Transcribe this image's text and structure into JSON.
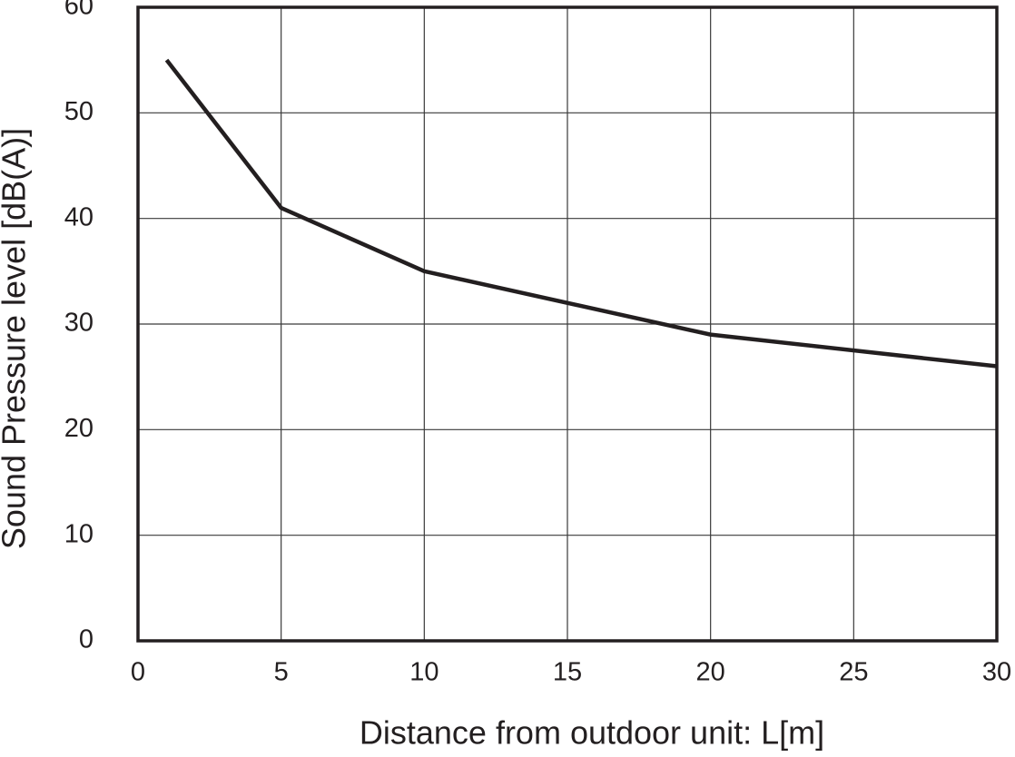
{
  "chart_data": {
    "type": "line",
    "x_label": "Distance from outdoor unit: L[m]",
    "y_label": "Sound Pressure level [dB(A)]",
    "x": [
      1,
      5,
      10,
      20,
      30
    ],
    "values": [
      55,
      41,
      35,
      29,
      26
    ],
    "color": "#231f20",
    "xlim": [
      0,
      30
    ],
    "xticks": [
      0,
      5,
      10,
      15,
      20,
      25,
      30
    ],
    "ylim": [
      0,
      60
    ],
    "yticks": [
      0,
      10,
      20,
      30,
      40,
      50,
      60
    ],
    "grid": true
  }
}
